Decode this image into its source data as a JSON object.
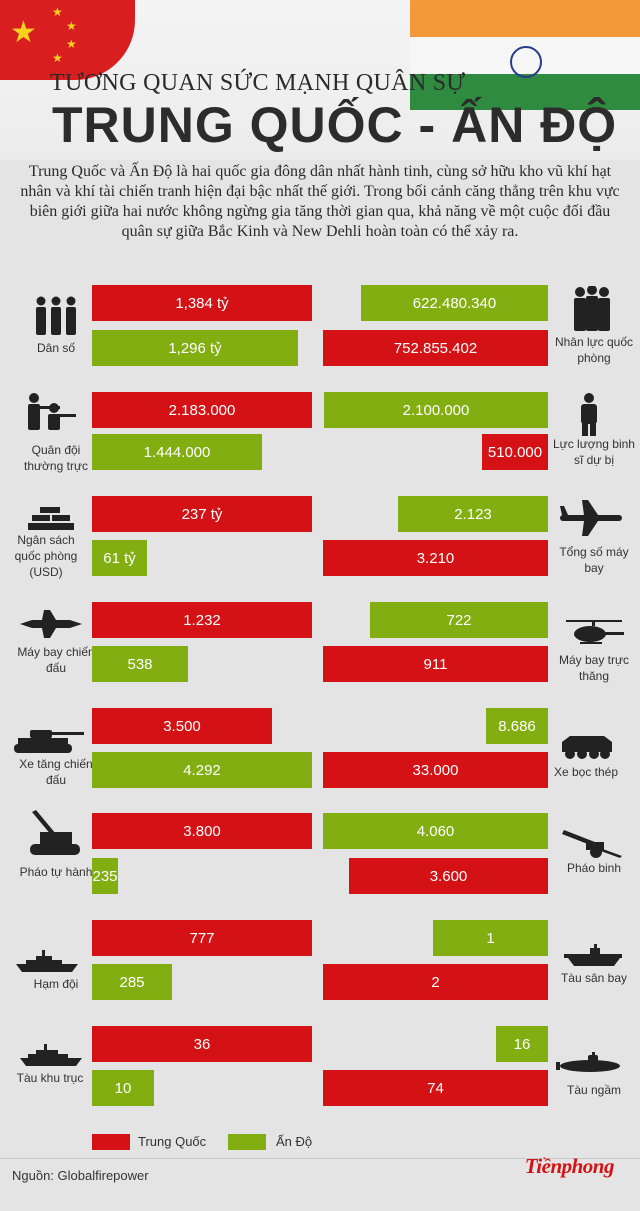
{
  "header": {
    "subtitle": "TƯƠNG QUAN SỨC MẠNH QUÂN SỰ",
    "title": "TRUNG QUỐC - ẤN ĐỘ"
  },
  "intro": "Trung Quốc và Ấn Độ là hai quốc gia đông dân nhất hành tinh, cùng sở hữu kho vũ khí hạt nhân và khí tài chiến tranh hiện đại bậc nhất thế giới. Trong bối cảnh căng thẳng trên khu vực biên giới giữa hai nước không ngừng gia tăng thời gian qua, khả năng về một cuộc đối đầu quân sự giữa Bắc Kinh và New Dehli hoàn toàn có thể xảy ra.",
  "colors": {
    "china": "#d41216",
    "india": "#82ae12"
  },
  "rows": [
    {
      "left_label": "Dân số",
      "left_icon": "people-icon",
      "left_china": "1,384 tỷ",
      "left_india": "1,296 tỷ",
      "right_label": "Nhân lực quốc phòng",
      "right_icon": "soldiers-icon",
      "right_china": "752.855.402",
      "right_india": "622.480.340"
    },
    {
      "left_label": "Quân đội thường trực",
      "left_icon": "rifleman-icon",
      "left_china": "2.183.000",
      "left_india": "1.444.000",
      "right_label": "Lực lượng binh sĩ dự bị",
      "right_icon": "soldier-icon",
      "right_china": "510.000",
      "right_india": "2.100.000"
    },
    {
      "left_label": "Ngân sách quốc phòng (USD)",
      "left_icon": "gold-bars-icon",
      "left_china": "237 tỷ",
      "left_india": "61 tỷ",
      "right_label": "Tổng số máy bay",
      "right_icon": "bomber-icon",
      "right_china": "3.210",
      "right_india": "2.123"
    },
    {
      "left_label": "Máy bay chiến đấu",
      "left_icon": "fighter-jet-icon",
      "left_china": "1.232",
      "left_india": "538",
      "right_label": "Máy bay trực thăng",
      "right_icon": "helicopter-icon",
      "right_china": "911",
      "right_india": "722"
    },
    {
      "left_label": "Xe tăng chiến đấu",
      "left_icon": "tank-icon",
      "left_china": "3.500",
      "left_india": "4.292",
      "right_label": "Xe bọc thép",
      "right_icon": "armored-vehicle-icon",
      "right_china": "33.000",
      "right_india": "8.686"
    },
    {
      "left_label": "Pháo tự hành",
      "left_icon": "self-propelled-gun-icon",
      "left_china": "3.800",
      "left_india": "235",
      "right_label": "Pháo binh",
      "right_icon": "artillery-icon",
      "right_china": "3.600",
      "right_india": "4.060"
    },
    {
      "left_label": "Hạm đội",
      "left_icon": "warship-icon",
      "left_china": "777",
      "left_india": "285",
      "right_label": "Tàu sân bay",
      "right_icon": "aircraft-carrier-icon",
      "right_china": "2",
      "right_india": "1"
    },
    {
      "left_label": "Tàu khu trục",
      "left_icon": "destroyer-icon",
      "left_china": "36",
      "left_india": "10",
      "right_label": "Tàu ngầm",
      "right_icon": "submarine-icon",
      "right_china": "74",
      "right_india": "16"
    }
  ],
  "legend": {
    "china": "Trung Quốc",
    "india": "Ấn Độ"
  },
  "source": "Nguồn: Globalfirepower",
  "logo": "Tiềnphong"
}
